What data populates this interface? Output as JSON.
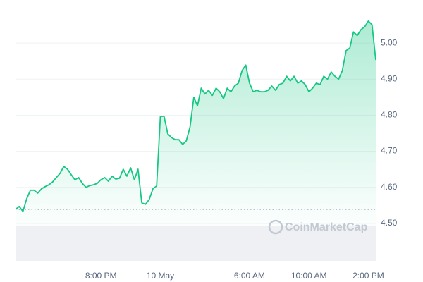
{
  "chart_data": {
    "type": "area-line",
    "watermark": "CoinMarketCap",
    "color": "#16c784",
    "values": [
      4.539,
      4.547,
      4.533,
      4.568,
      4.592,
      4.592,
      4.584,
      4.596,
      4.602,
      4.607,
      4.615,
      4.627,
      4.639,
      4.658,
      4.65,
      4.635,
      4.621,
      4.627,
      4.611,
      4.6,
      4.605,
      4.607,
      4.611,
      4.621,
      4.627,
      4.617,
      4.631,
      4.623,
      4.625,
      4.65,
      4.631,
      4.654,
      4.621,
      4.65,
      4.557,
      4.553,
      4.566,
      4.596,
      4.604,
      4.797,
      4.797,
      4.748,
      4.738,
      4.732,
      4.732,
      4.719,
      4.729,
      4.768,
      4.85,
      4.826,
      4.875,
      4.859,
      4.869,
      4.855,
      4.875,
      4.865,
      4.846,
      4.875,
      4.865,
      4.881,
      4.889,
      4.924,
      4.939,
      4.889,
      4.865,
      4.869,
      4.865,
      4.865,
      4.869,
      4.881,
      4.869,
      4.885,
      4.889,
      4.908,
      4.895,
      4.908,
      4.889,
      4.895,
      4.885,
      4.865,
      4.875,
      4.889,
      4.885,
      4.908,
      4.9,
      4.92,
      4.908,
      4.9,
      4.924,
      4.979,
      4.986,
      5.031,
      5.021,
      5.037,
      5.045,
      5.061,
      5.051,
      4.953
    ],
    "xlim": [
      0,
      97
    ],
    "xticks": [
      {
        "value": 23,
        "label": "8:00 PM"
      },
      {
        "value": 39,
        "label": "10 May"
      },
      {
        "value": 63,
        "label": "6:00 AM"
      },
      {
        "value": 79,
        "label": "10:00 AM"
      },
      {
        "value": 95,
        "label": "2:00 PM"
      }
    ],
    "ylim": [
      4.4,
      5.1
    ],
    "yticks": [
      {
        "value": 4.5,
        "label": "4.50"
      },
      {
        "value": 4.6,
        "label": "4.60"
      },
      {
        "value": 4.7,
        "label": "4.70"
      },
      {
        "value": 4.8,
        "label": "4.80"
      },
      {
        "value": 4.9,
        "label": "4.90"
      },
      {
        "value": 5.0,
        "label": "5.00"
      }
    ],
    "grid": true
  }
}
